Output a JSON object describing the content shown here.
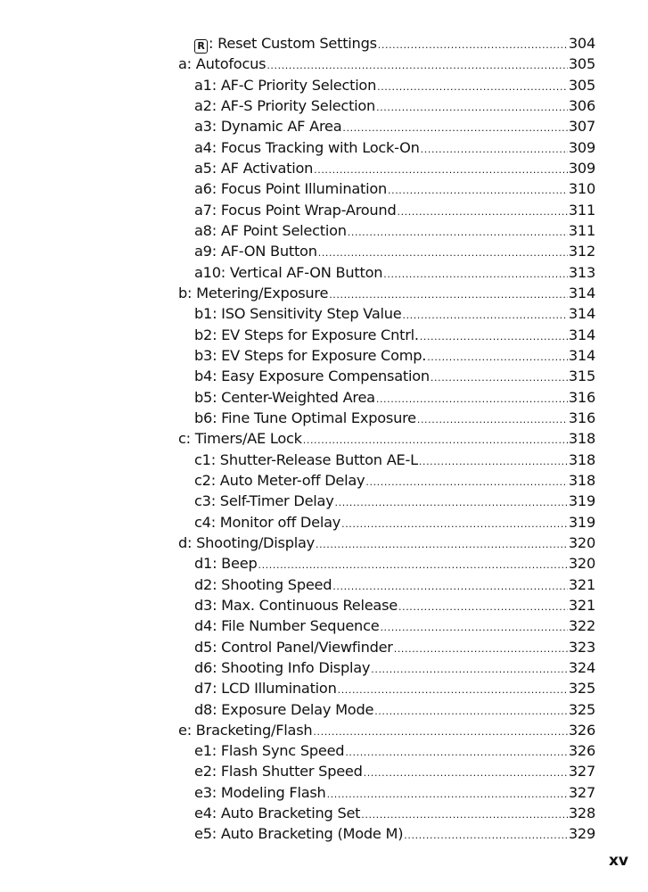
{
  "entries": [
    {
      "label": "Reset Custom Settings",
      "icon": "R",
      "prefix": ": ",
      "page": "304",
      "level": 2
    },
    {
      "label": "a: Autofocus",
      "page": "305",
      "level": 1
    },
    {
      "label": "a1: AF-C Priority Selection",
      "page": "305",
      "level": 2
    },
    {
      "label": "a2: AF-S Priority Selection",
      "page": "306",
      "level": 2
    },
    {
      "label": "a3: Dynamic AF Area",
      "page": "307",
      "level": 2
    },
    {
      "label": "a4: Focus Tracking with Lock-On",
      "page": "309",
      "level": 2
    },
    {
      "label": "a5: AF Activation",
      "page": "309",
      "level": 2
    },
    {
      "label": "a6: Focus Point Illumination",
      "page": "310",
      "level": 2
    },
    {
      "label": "a7: Focus Point Wrap-Around",
      "page": "311",
      "level": 2
    },
    {
      "label": "a8: AF Point Selection",
      "page": "311",
      "level": 2
    },
    {
      "label": "a9: AF-ON Button",
      "page": "312",
      "level": 2
    },
    {
      "label": "a10: Vertical AF-ON Button",
      "page": "313",
      "level": 2
    },
    {
      "label": "b: Metering/Exposure",
      "page": "314",
      "level": 1
    },
    {
      "label": "b1: ISO Sensitivity Step Value",
      "page": "314",
      "level": 2
    },
    {
      "label": "b2: EV Steps for Exposure Cntrl.",
      "page": "314",
      "level": 2
    },
    {
      "label": "b3: EV Steps for Exposure Comp.",
      "page": "314",
      "level": 2
    },
    {
      "label": "b4: Easy Exposure Compensation",
      "page": "315",
      "level": 2
    },
    {
      "label": "b5: Center-Weighted Area",
      "page": "316",
      "level": 2
    },
    {
      "label": "b6: Fine Tune Optimal Exposure",
      "page": "316",
      "level": 2
    },
    {
      "label": "c: Timers/AE Lock",
      "page": "318",
      "level": 1
    },
    {
      "label": "c1: Shutter-Release Button AE-L",
      "page": "318",
      "level": 2
    },
    {
      "label": "c2: Auto Meter-off Delay",
      "page": "318",
      "level": 2
    },
    {
      "label": "c3: Self-Timer Delay",
      "page": "319",
      "level": 2
    },
    {
      "label": "c4: Monitor off Delay",
      "page": "319",
      "level": 2
    },
    {
      "label": "d: Shooting/Display",
      "page": "320",
      "level": 1
    },
    {
      "label": "d1: Beep",
      "page": "320",
      "level": 2
    },
    {
      "label": "d2: Shooting Speed",
      "page": "321",
      "level": 2
    },
    {
      "label": "d3: Max. Continuous Release",
      "page": "321",
      "level": 2
    },
    {
      "label": "d4: File Number Sequence",
      "page": "322",
      "level": 2
    },
    {
      "label": "d5: Control Panel/Viewfinder",
      "page": "323",
      "level": 2
    },
    {
      "label": "d6: Shooting Info Display",
      "page": "324",
      "level": 2
    },
    {
      "label": "d7: LCD Illumination",
      "page": "325",
      "level": 2
    },
    {
      "label": "d8: Exposure Delay Mode",
      "page": "325",
      "level": 2
    },
    {
      "label": "e: Bracketing/Flash",
      "page": "326",
      "level": 1
    },
    {
      "label": "e1: Flash Sync Speed",
      "page": "326",
      "level": 2
    },
    {
      "label": "e2: Flash Shutter Speed",
      "page": "327",
      "level": 2
    },
    {
      "label": "e3: Modeling Flash",
      "page": "327",
      "level": 2
    },
    {
      "label": "e4: Auto Bracketing Set",
      "page": "328",
      "level": 2
    },
    {
      "label": "e5: Auto Bracketing (Mode M)",
      "page": "329",
      "level": 2
    }
  ],
  "folio": "xv"
}
